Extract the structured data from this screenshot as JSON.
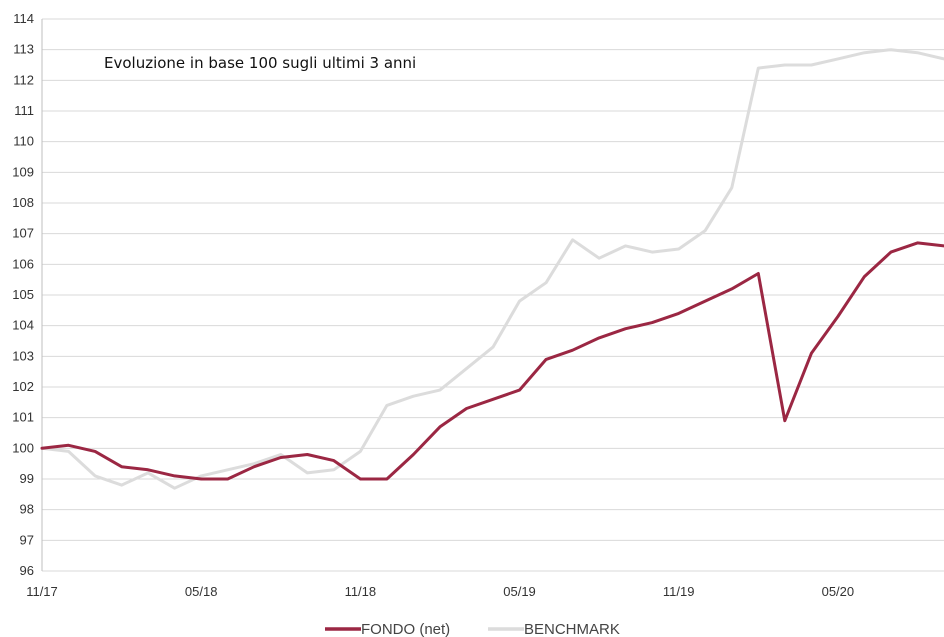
{
  "chart_data": {
    "type": "line",
    "title": "Evoluzione in base 100 sugli ultimi 3 anni",
    "xlabel": "",
    "ylabel": "",
    "x_ticks": [
      "11/17",
      "05/18",
      "11/18",
      "05/19",
      "11/19",
      "05/20"
    ],
    "x_range": [
      "11/17",
      "09/20"
    ],
    "ylim": [
      96,
      114
    ],
    "y_ticks": [
      96,
      97,
      98,
      99,
      100,
      101,
      102,
      103,
      104,
      105,
      106,
      107,
      108,
      109,
      110,
      111,
      112,
      113,
      114
    ],
    "grid": "horizontal",
    "legend": "bottom-center",
    "x": [
      "11/17",
      "12/17",
      "01/18",
      "02/18",
      "03/18",
      "04/18",
      "05/18",
      "06/18",
      "07/18",
      "08/18",
      "09/18",
      "10/18",
      "11/18",
      "12/18",
      "01/19",
      "02/19",
      "03/19",
      "04/19",
      "05/19",
      "06/19",
      "07/19",
      "08/19",
      "09/19",
      "10/19",
      "11/19",
      "12/19",
      "01/20",
      "02/20",
      "03/20",
      "04/20",
      "05/20",
      "06/20",
      "07/20",
      "08/20",
      "09/20"
    ],
    "series": [
      {
        "name": "FONDO (net)",
        "color": "#9b2743",
        "values": [
          100.0,
          100.1,
          99.9,
          99.4,
          99.3,
          99.1,
          99.0,
          99.0,
          99.4,
          99.7,
          99.8,
          99.6,
          99.0,
          99.0,
          99.8,
          100.7,
          101.3,
          101.6,
          101.9,
          102.9,
          103.2,
          103.6,
          103.9,
          104.1,
          104.4,
          104.8,
          105.2,
          105.7,
          100.9,
          103.1,
          104.3,
          105.6,
          106.4,
          106.7,
          106.6
        ]
      },
      {
        "name": "BENCHMARK",
        "color": "#dcdcdc",
        "values": [
          100.0,
          99.9,
          99.1,
          98.8,
          99.2,
          98.7,
          99.1,
          99.3,
          99.5,
          99.8,
          99.2,
          99.3,
          99.9,
          101.4,
          101.7,
          101.9,
          102.6,
          103.3,
          104.8,
          105.4,
          106.8,
          106.2,
          106.6,
          106.4,
          106.5,
          107.1,
          108.5,
          112.4,
          112.5,
          112.5,
          112.7,
          112.9,
          113.0,
          112.9,
          112.7
        ]
      }
    ]
  }
}
